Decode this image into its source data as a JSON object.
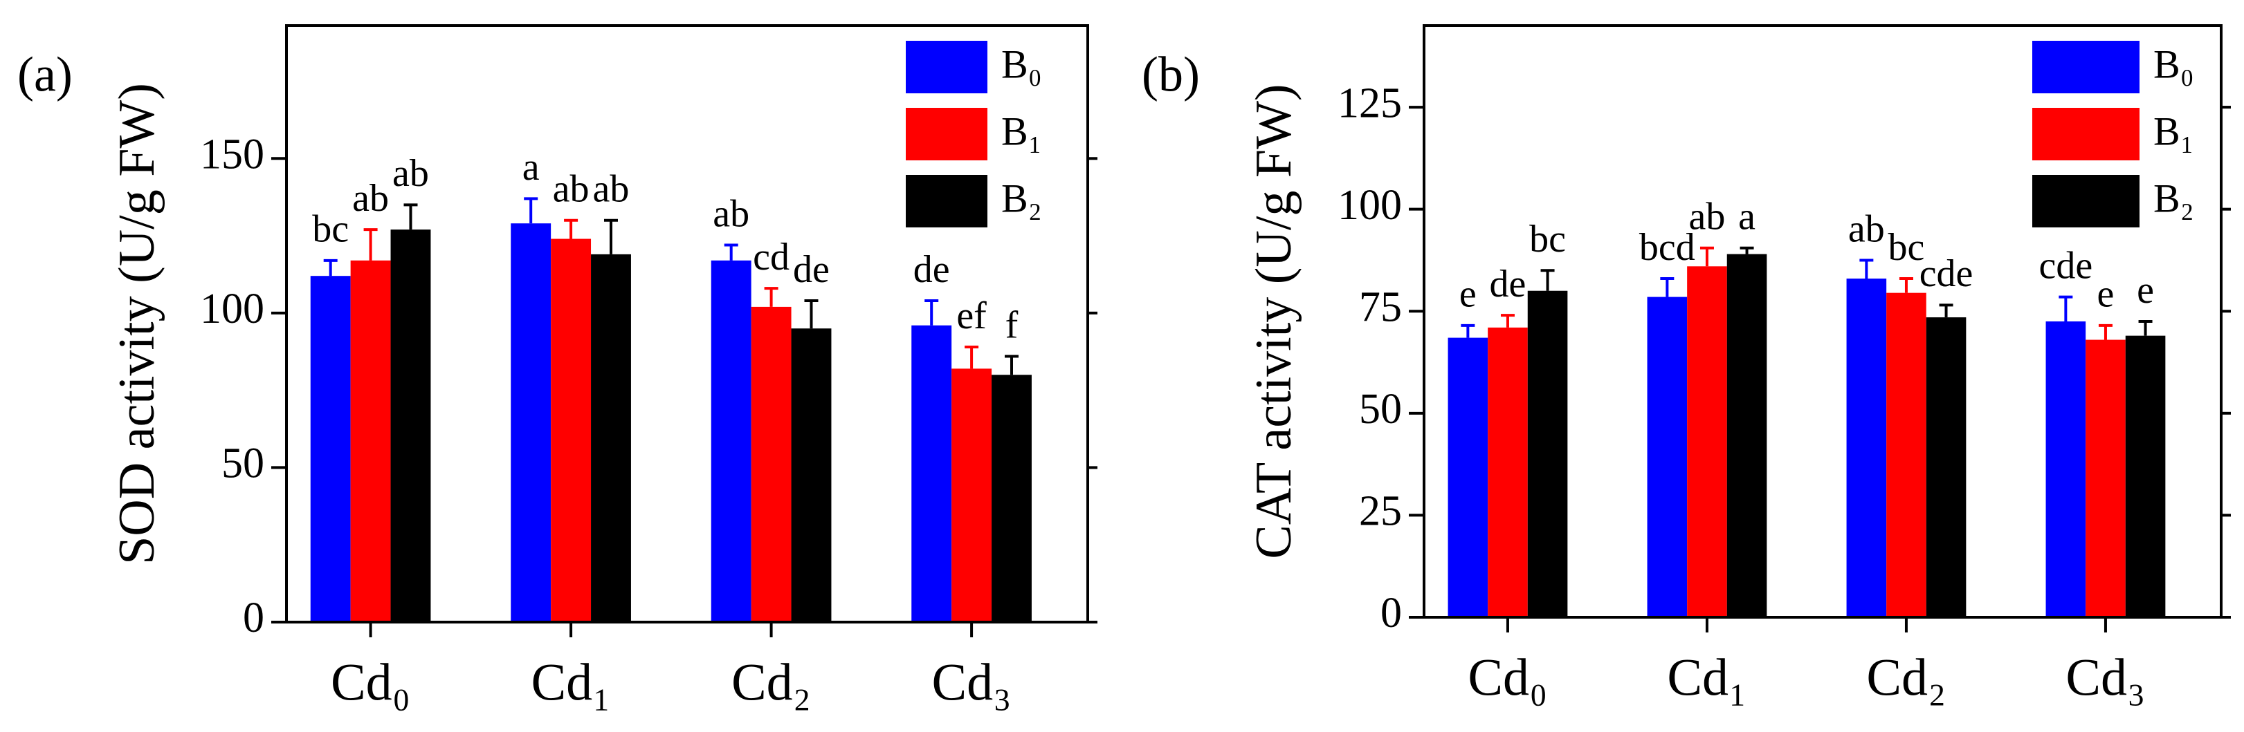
{
  "chart_data": [
    {
      "type": "bar",
      "panel": "(a)",
      "y_label": "SOD activity (U/g FW)",
      "categories": [
        "Cd₀",
        "Cd₁",
        "Cd₂",
        "Cd₃"
      ],
      "series": [
        {
          "name": "B₀",
          "color": "#0000ff",
          "values": [
            112,
            129,
            117,
            96
          ],
          "errors": [
            5,
            8,
            5,
            8
          ],
          "letters": [
            "bc",
            "a",
            "ab",
            "de"
          ]
        },
        {
          "name": "B₁",
          "color": "#ff0000",
          "values": [
            117,
            124,
            102,
            82
          ],
          "errors": [
            10,
            6,
            6,
            7
          ],
          "letters": [
            "ab",
            "ab",
            "cd",
            "ef"
          ]
        },
        {
          "name": "B₂",
          "color": "#000000",
          "values": [
            127,
            119,
            95,
            80
          ],
          "errors": [
            8,
            11,
            9,
            6
          ],
          "letters": [
            "ab",
            "ab",
            "de",
            "f"
          ]
        }
      ],
      "ylim": [
        0,
        193
      ],
      "yticks": [
        0,
        50,
        100,
        150
      ],
      "legend": "upper right"
    },
    {
      "type": "bar",
      "panel": "(b)",
      "y_label": "CAT activity (U/g FW)",
      "categories": [
        "Cd₀",
        "Cd₁",
        "Cd₂",
        "Cd₃"
      ],
      "series": [
        {
          "name": "B₀",
          "color": "#0000ff",
          "values": [
            68.5,
            78.5,
            83,
            72.5
          ],
          "errors": [
            3,
            4.5,
            4.5,
            6
          ],
          "letters": [
            "e",
            "bcd",
            "ab",
            "cde"
          ]
        },
        {
          "name": "B₁",
          "color": "#ff0000",
          "values": [
            71,
            86,
            79.5,
            68
          ],
          "errors": [
            3,
            4.5,
            3.5,
            3.5
          ],
          "letters": [
            "de",
            "ab",
            "bc",
            "e"
          ]
        },
        {
          "name": "B₂",
          "color": "#000000",
          "values": [
            80,
            89,
            73.5,
            69
          ],
          "errors": [
            5,
            1.5,
            3,
            3.5
          ],
          "letters": [
            "bc",
            "a",
            "cde",
            "e"
          ]
        }
      ],
      "ylim": [
        0,
        145
      ],
      "yticks": [
        0,
        25,
        50,
        75,
        100,
        125
      ],
      "legend": "upper right"
    }
  ]
}
